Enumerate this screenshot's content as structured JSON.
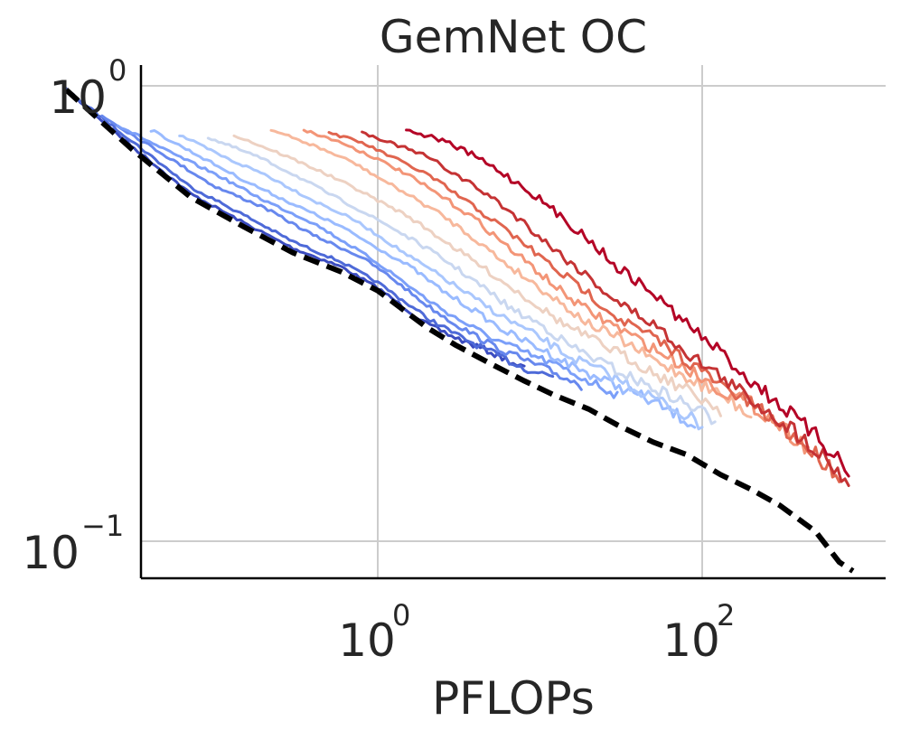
{
  "chart_data": {
    "type": "line",
    "title": "GemNet OC",
    "xlabel": "PFLOPs",
    "ylabel": "",
    "xscale": "log",
    "yscale": "log",
    "xlim": [
      0.005,
      1000
    ],
    "ylim": [
      0.078,
      1.3
    ],
    "grid": true,
    "legend": "none",
    "x_ticks": [
      {
        "value": 1,
        "base": "10",
        "exp": "0"
      },
      {
        "value": 100,
        "base": "10",
        "exp": "2"
      }
    ],
    "y_ticks": [
      {
        "value": 0.1,
        "base": "10",
        "exp": "−1"
      },
      {
        "value": 1,
        "base": "10",
        "exp": "0"
      }
    ],
    "series": [
      {
        "color": "#3b4cc0",
        "points": [
          [
            0.012,
            0.98
          ],
          [
            0.03,
            0.74
          ],
          [
            0.07,
            0.58
          ],
          [
            0.15,
            0.5
          ],
          [
            0.3,
            0.44
          ],
          [
            0.6,
            0.4
          ],
          [
            1,
            0.36
          ],
          [
            2,
            0.3
          ],
          [
            3,
            0.28
          ],
          [
            5,
            0.26
          ],
          [
            8,
            0.24
          ]
        ]
      },
      {
        "color": "#4e6ad8",
        "points": [
          [
            0.012,
            0.98
          ],
          [
            0.03,
            0.76
          ],
          [
            0.07,
            0.6
          ],
          [
            0.15,
            0.52
          ],
          [
            0.3,
            0.455
          ],
          [
            0.6,
            0.41
          ],
          [
            1,
            0.37
          ],
          [
            2,
            0.31
          ],
          [
            3,
            0.285
          ],
          [
            5,
            0.26
          ],
          [
            8,
            0.24
          ],
          [
            12,
            0.23
          ]
        ]
      },
      {
        "color": "#6788ee",
        "points": [
          [
            0.02,
            0.86
          ],
          [
            0.05,
            0.7
          ],
          [
            0.1,
            0.6
          ],
          [
            0.2,
            0.54
          ],
          [
            0.4,
            0.47
          ],
          [
            0.8,
            0.42
          ],
          [
            1.2,
            0.38
          ],
          [
            2,
            0.33
          ],
          [
            3,
            0.3
          ],
          [
            5,
            0.27
          ],
          [
            8,
            0.25
          ],
          [
            12,
            0.235
          ],
          [
            18,
            0.22
          ]
        ]
      },
      {
        "color": "#7b9ff9",
        "points": [
          [
            0.025,
            0.82
          ],
          [
            0.05,
            0.72
          ],
          [
            0.1,
            0.64
          ],
          [
            0.2,
            0.56
          ],
          [
            0.4,
            0.5
          ],
          [
            0.8,
            0.43
          ],
          [
            1.2,
            0.39
          ],
          [
            2,
            0.34
          ],
          [
            3,
            0.31
          ],
          [
            5,
            0.28
          ],
          [
            8,
            0.26
          ],
          [
            12,
            0.245
          ],
          [
            20,
            0.225
          ],
          [
            30,
            0.21
          ]
        ]
      },
      {
        "color": "#9abbff",
        "points": [
          [
            0.04,
            0.8
          ],
          [
            0.08,
            0.7
          ],
          [
            0.15,
            0.62
          ],
          [
            0.3,
            0.55
          ],
          [
            0.6,
            0.49
          ],
          [
            1,
            0.44
          ],
          [
            1.6,
            0.4
          ],
          [
            2.5,
            0.355
          ],
          [
            4,
            0.32
          ],
          [
            6,
            0.29
          ],
          [
            10,
            0.265
          ],
          [
            15,
            0.245
          ],
          [
            25,
            0.225
          ],
          [
            40,
            0.21
          ],
          [
            60,
            0.195
          ],
          [
            90,
            0.18
          ]
        ]
      },
      {
        "color": "#aac7fd",
        "points": [
          [
            0.06,
            0.78
          ],
          [
            0.12,
            0.69
          ],
          [
            0.2,
            0.64
          ],
          [
            0.4,
            0.56
          ],
          [
            0.7,
            0.51
          ],
          [
            1,
            0.47
          ],
          [
            1.6,
            0.42
          ],
          [
            2.5,
            0.38
          ],
          [
            4,
            0.34
          ],
          [
            6,
            0.31
          ],
          [
            10,
            0.28
          ],
          [
            15,
            0.255
          ],
          [
            25,
            0.235
          ],
          [
            40,
            0.215
          ],
          [
            60,
            0.2
          ],
          [
            100,
            0.18
          ]
        ]
      },
      {
        "color": "#c9d7f0",
        "points": [
          [
            0.09,
            0.77
          ],
          [
            0.18,
            0.7
          ],
          [
            0.3,
            0.64
          ],
          [
            0.5,
            0.58
          ],
          [
            0.8,
            0.53
          ],
          [
            1.2,
            0.49
          ],
          [
            2,
            0.44
          ],
          [
            3,
            0.4
          ],
          [
            4.5,
            0.36
          ],
          [
            7,
            0.32
          ],
          [
            10,
            0.3
          ],
          [
            15,
            0.27
          ],
          [
            25,
            0.245
          ],
          [
            40,
            0.225
          ],
          [
            70,
            0.205
          ],
          [
            120,
            0.185
          ]
        ]
      },
      {
        "color": "#edd1c2",
        "points": [
          [
            0.13,
            0.78
          ],
          [
            0.25,
            0.71
          ],
          [
            0.4,
            0.66
          ],
          [
            0.7,
            0.6
          ],
          [
            1,
            0.56
          ],
          [
            1.5,
            0.52
          ],
          [
            2.5,
            0.46
          ],
          [
            4,
            0.41
          ],
          [
            6,
            0.37
          ],
          [
            9,
            0.335
          ],
          [
            14,
            0.3
          ],
          [
            20,
            0.28
          ],
          [
            30,
            0.26
          ],
          [
            50,
            0.235
          ],
          [
            80,
            0.215
          ],
          [
            130,
            0.195
          ]
        ]
      },
      {
        "color": "#f7b89c",
        "points": [
          [
            0.22,
            0.8
          ],
          [
            0.4,
            0.74
          ],
          [
            0.7,
            0.68
          ],
          [
            1,
            0.63
          ],
          [
            1.5,
            0.58
          ],
          [
            2.5,
            0.52
          ],
          [
            4,
            0.46
          ],
          [
            6,
            0.41
          ],
          [
            9,
            0.37
          ],
          [
            14,
            0.33
          ],
          [
            20,
            0.3
          ],
          [
            30,
            0.28
          ],
          [
            50,
            0.25
          ],
          [
            80,
            0.23
          ],
          [
            130,
            0.21
          ],
          [
            200,
            0.19
          ]
        ]
      },
      {
        "color": "#f39577",
        "points": [
          [
            0.35,
            0.8
          ],
          [
            0.6,
            0.75
          ],
          [
            1,
            0.69
          ],
          [
            1.5,
            0.64
          ],
          [
            2.5,
            0.57
          ],
          [
            4,
            0.51
          ],
          [
            6,
            0.45
          ],
          [
            9,
            0.4
          ],
          [
            14,
            0.35
          ],
          [
            20,
            0.32
          ],
          [
            30,
            0.295
          ],
          [
            50,
            0.265
          ],
          [
            80,
            0.24
          ],
          [
            130,
            0.215
          ],
          [
            200,
            0.2
          ],
          [
            300,
            0.18
          ],
          [
            450,
            0.16
          ]
        ]
      },
      {
        "color": "#e0654f",
        "points": [
          [
            0.5,
            0.79
          ],
          [
            0.8,
            0.75
          ],
          [
            1.2,
            0.7
          ],
          [
            2,
            0.64
          ],
          [
            3,
            0.58
          ],
          [
            5,
            0.51
          ],
          [
            8,
            0.45
          ],
          [
            12,
            0.4
          ],
          [
            20,
            0.35
          ],
          [
            30,
            0.31
          ],
          [
            50,
            0.28
          ],
          [
            80,
            0.25
          ],
          [
            130,
            0.22
          ],
          [
            200,
            0.2
          ],
          [
            300,
            0.18
          ],
          [
            500,
            0.155
          ],
          [
            700,
            0.14
          ]
        ]
      },
      {
        "color": "#c53334",
        "points": [
          [
            0.8,
            0.79
          ],
          [
            1.2,
            0.75
          ],
          [
            2,
            0.7
          ],
          [
            3,
            0.64
          ],
          [
            5,
            0.57
          ],
          [
            8,
            0.5
          ],
          [
            12,
            0.44
          ],
          [
            20,
            0.38
          ],
          [
            30,
            0.335
          ],
          [
            50,
            0.3
          ],
          [
            80,
            0.26
          ],
          [
            130,
            0.23
          ],
          [
            200,
            0.205
          ],
          [
            300,
            0.185
          ],
          [
            500,
            0.16
          ],
          [
            800,
            0.135
          ]
        ]
      },
      {
        "color": "#b40426",
        "points": [
          [
            1.5,
            0.8
          ],
          [
            2.5,
            0.76
          ],
          [
            4,
            0.7
          ],
          [
            6,
            0.64
          ],
          [
            9,
            0.58
          ],
          [
            14,
            0.51
          ],
          [
            20,
            0.46
          ],
          [
            30,
            0.4
          ],
          [
            50,
            0.35
          ],
          [
            80,
            0.3
          ],
          [
            130,
            0.26
          ],
          [
            200,
            0.225
          ],
          [
            300,
            0.2
          ],
          [
            500,
            0.17
          ],
          [
            800,
            0.145
          ]
        ]
      }
    ],
    "frontier": {
      "color": "#000000",
      "style": "dashed",
      "points": [
        [
          0.012,
          0.98
        ],
        [
          0.03,
          0.73
        ],
        [
          0.07,
          0.57
        ],
        [
          0.15,
          0.49
        ],
        [
          0.3,
          0.43
        ],
        [
          0.6,
          0.39
        ],
        [
          1,
          0.355
        ],
        [
          2,
          0.295
        ],
        [
          3,
          0.27
        ],
        [
          5,
          0.245
        ],
        [
          8,
          0.225
        ],
        [
          12,
          0.21
        ],
        [
          20,
          0.195
        ],
        [
          30,
          0.18
        ],
        [
          50,
          0.165
        ],
        [
          80,
          0.155
        ],
        [
          130,
          0.14
        ],
        [
          200,
          0.13
        ],
        [
          300,
          0.12
        ],
        [
          500,
          0.105
        ],
        [
          700,
          0.09
        ],
        [
          850,
          0.086
        ]
      ]
    }
  }
}
